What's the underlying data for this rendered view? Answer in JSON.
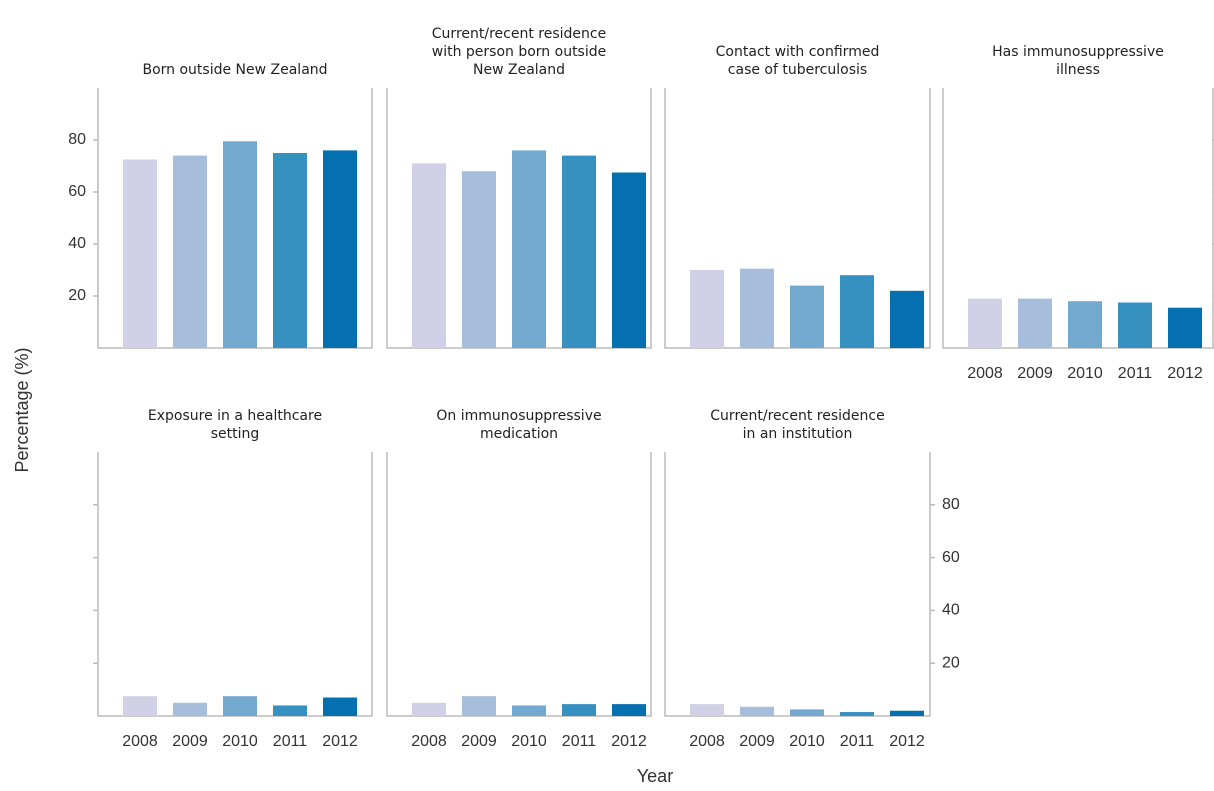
{
  "xlabel": "Year",
  "ylabel": "Percentage (%)",
  "categories": [
    "2008",
    "2009",
    "2010",
    "2011",
    "2012"
  ],
  "colors": [
    "#d0d1e6",
    "#a6bddb",
    "#74a9cf",
    "#3690c0",
    "#0570b0"
  ],
  "ylim": [
    0,
    100
  ],
  "yticks": [
    20,
    40,
    60,
    80
  ],
  "chart_data": [
    {
      "type": "bar",
      "title": [
        "Born outside New Zealand"
      ],
      "values": [
        72.5,
        74,
        79.5,
        75,
        76
      ]
    },
    {
      "type": "bar",
      "title": [
        "Current/recent residence",
        "with person born outside",
        "New Zealand"
      ],
      "values": [
        71,
        68,
        76,
        74,
        67.5
      ]
    },
    {
      "type": "bar",
      "title": [
        "Contact with confirmed",
        "case of tuberculosis"
      ],
      "values": [
        30,
        30.5,
        24,
        28,
        22
      ]
    },
    {
      "type": "bar",
      "title": [
        "Has immunosuppressive",
        "illness"
      ],
      "values": [
        19,
        19,
        18,
        17.5,
        15.5
      ]
    },
    {
      "type": "bar",
      "title": [
        "Exposure in a healthcare",
        "setting"
      ],
      "values": [
        7.5,
        5,
        7.5,
        4,
        7
      ]
    },
    {
      "type": "bar",
      "title": [
        "On immunosuppressive",
        "medication"
      ],
      "values": [
        5,
        7.5,
        4,
        4.5,
        4.5
      ]
    },
    {
      "type": "bar",
      "title": [
        "Current/recent residence",
        "in an institution"
      ],
      "values": [
        4.5,
        3.5,
        2.5,
        1.5,
        2
      ]
    }
  ]
}
